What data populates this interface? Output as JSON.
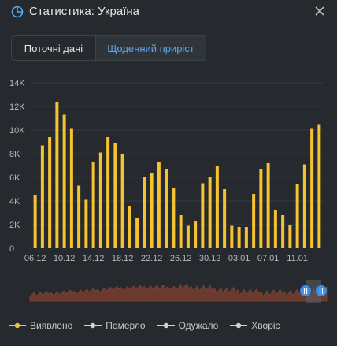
{
  "header": {
    "title": "Статистика: Україна",
    "icon": "pie-chart-icon",
    "close_icon": "close-icon"
  },
  "tabs": [
    {
      "label": "Поточні дані",
      "active": false
    },
    {
      "label": "Щоденний приріст",
      "active": true
    }
  ],
  "colors": {
    "bar": "#f5c230",
    "background": "#262a2e",
    "grid": "#34393e",
    "active_tab_text": "#5aa7f2",
    "navigator_fill": "#6b3a2e",
    "navigator_handle": "#3a8ee6",
    "legend_inactive": "#cfd2d5"
  },
  "legend": [
    {
      "label": "Виявлено",
      "active": true
    },
    {
      "label": "Померло",
      "active": false
    },
    {
      "label": "Одужало",
      "active": false
    },
    {
      "label": "Хворіє",
      "active": false
    }
  ],
  "chart_data": {
    "type": "bar",
    "series": [
      {
        "name": "Виявлено",
        "values": [
          4500,
          8700,
          9400,
          12400,
          11300,
          10100,
          5300,
          4100,
          7300,
          8100,
          9400,
          8900,
          8000,
          3600,
          2600,
          6000,
          6400,
          7300,
          6700,
          5100,
          2800,
          1900,
          2300,
          5500,
          6000,
          7000,
          5000,
          1900,
          1800,
          1800,
          4600,
          6700,
          7200,
          3200,
          2800,
          2000,
          5400,
          7100,
          10100,
          10500
        ]
      }
    ],
    "x_tick_labels": [
      "06.12",
      "10.12",
      "14.12",
      "18.12",
      "22.12",
      "26.12",
      "30.12",
      "03.01",
      "07.01",
      "11.01"
    ],
    "y_tick_labels": [
      "0",
      "2K",
      "4K",
      "6K",
      "8K",
      "10K",
      "12K",
      "14K"
    ],
    "ylim": [
      0,
      14000
    ],
    "grid": true
  }
}
